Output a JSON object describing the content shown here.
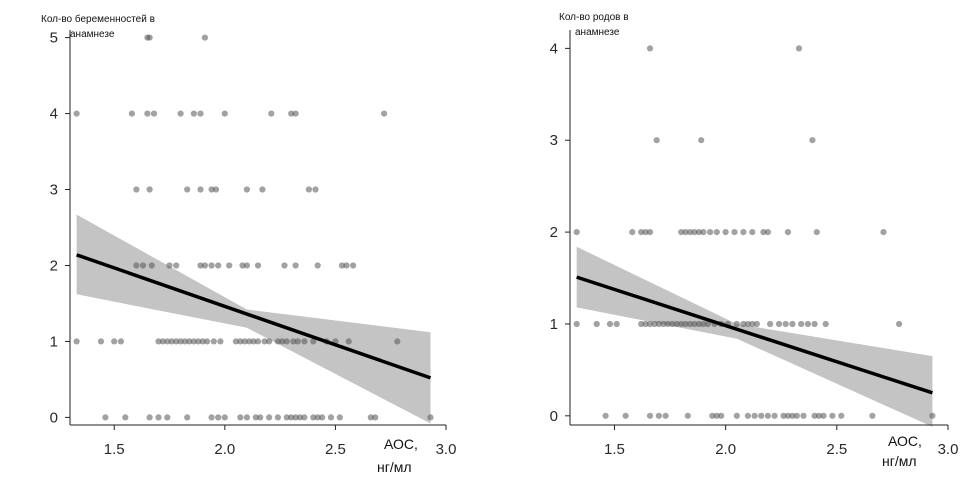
{
  "chart_data": [
    {
      "type": "scatter",
      "ylabel_line1": "Кол-во беременностей в",
      "ylabel_line2": "анамнезе",
      "xlabel_line1": "АОС,",
      "xlabel_line2": "нг/мл",
      "xlim": [
        1.3,
        3.0
      ],
      "ylim": [
        -0.1,
        5.1
      ],
      "xticks": [
        1.5,
        2.0,
        2.5,
        3.0
      ],
      "xtick_labels": [
        "1.5",
        "2.0",
        "2.5",
        "3.0"
      ],
      "yticks": [
        0,
        1,
        2,
        3,
        4,
        5
      ],
      "ytick_labels": [
        "0",
        "1",
        "2",
        "3",
        "4",
        "5"
      ],
      "grid": false,
      "points": [
        [
          1.65,
          5
        ],
        [
          1.66,
          5
        ],
        [
          1.91,
          5
        ],
        [
          1.33,
          4
        ],
        [
          1.58,
          4
        ],
        [
          1.65,
          4
        ],
        [
          1.68,
          4
        ],
        [
          1.8,
          4
        ],
        [
          1.86,
          4
        ],
        [
          1.89,
          4
        ],
        [
          2.0,
          4
        ],
        [
          2.21,
          4
        ],
        [
          2.3,
          4
        ],
        [
          2.32,
          4
        ],
        [
          2.72,
          4
        ],
        [
          1.6,
          3
        ],
        [
          1.66,
          3
        ],
        [
          1.83,
          3
        ],
        [
          1.89,
          3
        ],
        [
          1.94,
          3
        ],
        [
          1.96,
          3
        ],
        [
          2.1,
          3
        ],
        [
          2.17,
          3
        ],
        [
          2.38,
          3
        ],
        [
          2.41,
          3
        ],
        [
          1.6,
          2
        ],
        [
          1.63,
          2
        ],
        [
          1.67,
          2
        ],
        [
          1.75,
          2
        ],
        [
          1.78,
          2
        ],
        [
          1.89,
          2
        ],
        [
          1.91,
          2
        ],
        [
          1.94,
          2
        ],
        [
          1.97,
          2
        ],
        [
          2.02,
          2
        ],
        [
          2.08,
          2
        ],
        [
          2.1,
          2
        ],
        [
          2.15,
          2
        ],
        [
          2.27,
          2
        ],
        [
          2.32,
          2
        ],
        [
          2.42,
          2
        ],
        [
          2.53,
          2
        ],
        [
          2.55,
          2
        ],
        [
          2.58,
          2
        ],
        [
          1.33,
          1
        ],
        [
          1.44,
          1
        ],
        [
          1.5,
          1
        ],
        [
          1.53,
          1
        ],
        [
          1.7,
          1
        ],
        [
          1.72,
          1
        ],
        [
          1.74,
          1
        ],
        [
          1.76,
          1
        ],
        [
          1.78,
          1
        ],
        [
          1.8,
          1
        ],
        [
          1.82,
          1
        ],
        [
          1.84,
          1
        ],
        [
          1.86,
          1
        ],
        [
          1.88,
          1
        ],
        [
          1.9,
          1
        ],
        [
          1.92,
          1
        ],
        [
          1.95,
          1
        ],
        [
          1.98,
          1
        ],
        [
          2.05,
          1
        ],
        [
          2.07,
          1
        ],
        [
          2.09,
          1
        ],
        [
          2.11,
          1
        ],
        [
          2.13,
          1
        ],
        [
          2.15,
          1
        ],
        [
          2.18,
          1
        ],
        [
          2.2,
          1
        ],
        [
          2.24,
          1
        ],
        [
          2.26,
          1
        ],
        [
          2.28,
          1
        ],
        [
          2.31,
          1
        ],
        [
          2.33,
          1
        ],
        [
          2.36,
          1
        ],
        [
          2.4,
          1
        ],
        [
          2.46,
          1
        ],
        [
          2.5,
          1
        ],
        [
          2.56,
          1
        ],
        [
          2.78,
          1
        ],
        [
          1.46,
          0
        ],
        [
          1.55,
          0
        ],
        [
          1.66,
          0
        ],
        [
          1.7,
          0
        ],
        [
          1.74,
          0
        ],
        [
          1.83,
          0
        ],
        [
          1.94,
          0
        ],
        [
          1.97,
          0
        ],
        [
          2.0,
          0
        ],
        [
          2.07,
          0
        ],
        [
          2.1,
          0
        ],
        [
          2.14,
          0
        ],
        [
          2.16,
          0
        ],
        [
          2.2,
          0
        ],
        [
          2.24,
          0
        ],
        [
          2.28,
          0
        ],
        [
          2.3,
          0
        ],
        [
          2.32,
          0
        ],
        [
          2.34,
          0
        ],
        [
          2.36,
          0
        ],
        [
          2.4,
          0
        ],
        [
          2.42,
          0
        ],
        [
          2.44,
          0
        ],
        [
          2.48,
          0
        ],
        [
          2.52,
          0
        ],
        [
          2.66,
          0
        ],
        [
          2.68,
          0
        ],
        [
          2.93,
          0
        ]
      ],
      "fit_line": {
        "x": [
          1.33,
          2.93
        ],
        "y": [
          2.14,
          0.52
        ]
      },
      "ci_band": {
        "x": [
          1.33,
          2.1,
          2.93
        ],
        "lower": [
          1.62,
          1.18,
          -0.08
        ],
        "upper": [
          2.67,
          1.42,
          1.12
        ]
      }
    },
    {
      "type": "scatter",
      "ylabel_line1": "Кол-во родов в",
      "ylabel_line2": "анамнезе",
      "xlabel_line1": "АОС,",
      "xlabel_line2": "нг/мл",
      "xlim": [
        1.3,
        3.0
      ],
      "ylim": [
        -0.1,
        4.2
      ],
      "xticks": [
        1.5,
        2.0,
        2.5,
        3.0
      ],
      "xtick_labels": [
        "1.5",
        "2.0",
        "2.5",
        "3.0"
      ],
      "yticks": [
        0,
        1,
        2,
        3,
        4
      ],
      "ytick_labels": [
        "0",
        "1",
        "2",
        "3",
        "4"
      ],
      "grid": false,
      "points": [
        [
          1.66,
          4
        ],
        [
          2.33,
          4
        ],
        [
          1.69,
          3
        ],
        [
          1.89,
          3
        ],
        [
          2.39,
          3
        ],
        [
          1.33,
          2
        ],
        [
          1.58,
          2
        ],
        [
          1.62,
          2
        ],
        [
          1.64,
          2
        ],
        [
          1.66,
          2
        ],
        [
          1.8,
          2
        ],
        [
          1.82,
          2
        ],
        [
          1.84,
          2
        ],
        [
          1.86,
          2
        ],
        [
          1.88,
          2
        ],
        [
          1.9,
          2
        ],
        [
          1.93,
          2
        ],
        [
          1.96,
          2
        ],
        [
          2.0,
          2
        ],
        [
          2.04,
          2
        ],
        [
          2.08,
          2
        ],
        [
          2.12,
          2
        ],
        [
          2.17,
          2
        ],
        [
          2.19,
          2
        ],
        [
          2.28,
          2
        ],
        [
          2.41,
          2
        ],
        [
          2.71,
          2
        ],
        [
          1.33,
          1
        ],
        [
          1.42,
          1
        ],
        [
          1.48,
          1
        ],
        [
          1.51,
          1
        ],
        [
          1.62,
          1
        ],
        [
          1.64,
          1
        ],
        [
          1.66,
          1
        ],
        [
          1.68,
          1
        ],
        [
          1.7,
          1
        ],
        [
          1.72,
          1
        ],
        [
          1.74,
          1
        ],
        [
          1.76,
          1
        ],
        [
          1.78,
          1
        ],
        [
          1.8,
          1
        ],
        [
          1.82,
          1
        ],
        [
          1.84,
          1
        ],
        [
          1.86,
          1
        ],
        [
          1.88,
          1
        ],
        [
          1.9,
          1
        ],
        [
          1.92,
          1
        ],
        [
          1.95,
          1
        ],
        [
          1.98,
          1
        ],
        [
          2.01,
          1
        ],
        [
          2.05,
          1
        ],
        [
          2.08,
          1
        ],
        [
          2.1,
          1
        ],
        [
          2.12,
          1
        ],
        [
          2.14,
          1
        ],
        [
          2.2,
          1
        ],
        [
          2.24,
          1
        ],
        [
          2.27,
          1
        ],
        [
          2.3,
          1
        ],
        [
          2.34,
          1
        ],
        [
          2.37,
          1
        ],
        [
          2.4,
          1
        ],
        [
          2.45,
          1
        ],
        [
          2.78,
          1
        ],
        [
          1.46,
          0
        ],
        [
          1.55,
          0
        ],
        [
          1.66,
          0
        ],
        [
          1.7,
          0
        ],
        [
          1.73,
          0
        ],
        [
          1.83,
          0
        ],
        [
          1.94,
          0
        ],
        [
          1.96,
          0
        ],
        [
          1.98,
          0
        ],
        [
          2.05,
          0
        ],
        [
          2.1,
          0
        ],
        [
          2.13,
          0
        ],
        [
          2.16,
          0
        ],
        [
          2.19,
          0
        ],
        [
          2.22,
          0
        ],
        [
          2.26,
          0
        ],
        [
          2.28,
          0
        ],
        [
          2.3,
          0
        ],
        [
          2.32,
          0
        ],
        [
          2.35,
          0
        ],
        [
          2.4,
          0
        ],
        [
          2.42,
          0
        ],
        [
          2.44,
          0
        ],
        [
          2.48,
          0
        ],
        [
          2.52,
          0
        ],
        [
          2.66,
          0
        ],
        [
          2.93,
          0
        ]
      ],
      "fit_line": {
        "x": [
          1.33,
          2.93
        ],
        "y": [
          1.51,
          0.25
        ]
      },
      "ci_band": {
        "x": [
          1.33,
          2.05,
          2.93
        ],
        "lower": [
          1.18,
          0.84,
          -0.12
        ],
        "upper": [
          1.84,
          1.0,
          0.65
        ]
      }
    }
  ]
}
